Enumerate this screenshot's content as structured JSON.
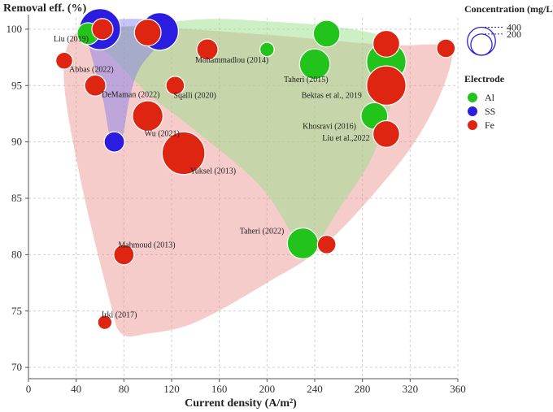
{
  "chart_data": {
    "type": "scatter",
    "xlabel": "Current density (A/m²)",
    "ylabel": "Removal eff. (%)",
    "xlim": [
      0,
      360
    ],
    "ylim": [
      69,
      101
    ],
    "xticks": [
      0,
      40,
      80,
      120,
      160,
      200,
      240,
      280,
      320,
      360
    ],
    "yticks": [
      70,
      75,
      80,
      85,
      90,
      95,
      100
    ],
    "grid": true,
    "colors": {
      "Al": "#22c31b",
      "SS": "#2b1de0",
      "Fe": "#dd2511"
    },
    "regions": [
      {
        "electrode": "Fe",
        "fill": "#e98f8a",
        "opacity": 0.45,
        "boundary": [
          [
            55,
            100
          ],
          [
            100,
            100.2
          ],
          [
            200,
            99.5
          ],
          [
            300,
            98.6
          ],
          [
            345,
            98.6
          ],
          [
            355,
            97.5
          ],
          [
            340,
            93
          ],
          [
            310,
            88
          ],
          [
            250,
            81
          ],
          [
            200,
            77.5
          ],
          [
            140,
            74
          ],
          [
            100,
            73
          ],
          [
            78,
            73
          ],
          [
            68,
            76
          ],
          [
            45,
            86
          ],
          [
            30,
            95
          ],
          [
            35,
            99
          ]
        ]
      },
      {
        "electrode": "Al",
        "fill": "#9adf8a",
        "opacity": 0.5,
        "boundary": [
          [
            55,
            99.9
          ],
          [
            100,
            100.4
          ],
          [
            150,
            100.9
          ],
          [
            200,
            100.7
          ],
          [
            250,
            100.3
          ],
          [
            290,
            99.6
          ],
          [
            308,
            98.5
          ],
          [
            310,
            96
          ],
          [
            300,
            92
          ],
          [
            285,
            88
          ],
          [
            260,
            84
          ],
          [
            240,
            80.7
          ],
          [
            228,
            80.7
          ],
          [
            195,
            86
          ],
          [
            140,
            91
          ],
          [
            100,
            94.3
          ],
          [
            70,
            97.5
          ],
          [
            52,
            99
          ]
        ]
      },
      {
        "electrode": "SS",
        "fill": "#7c78f0",
        "opacity": 0.45,
        "boundary": [
          [
            55,
            100.2
          ],
          [
            70,
            100.8
          ],
          [
            95,
            100.9
          ],
          [
            112,
            100.5
          ],
          [
            115,
            99.6
          ],
          [
            108,
            98.5
          ],
          [
            93,
            96.5
          ],
          [
            85,
            94
          ],
          [
            80,
            91
          ],
          [
            76,
            89.5
          ],
          [
            70,
            89.5
          ],
          [
            62,
            94
          ],
          [
            50,
            99
          ]
        ]
      }
    ],
    "series": [
      {
        "name": "Al",
        "points": [
          {
            "x": 240,
            "y": 96.9,
            "c": 240,
            "label": "Taheri (2015)"
          },
          {
            "x": 200,
            "y": 98.2,
            "c": 25,
            "label": ""
          },
          {
            "x": 250,
            "y": 99.6,
            "c": 170,
            "label": ""
          },
          {
            "x": 300,
            "y": 97.1,
            "c": 450,
            "label": ""
          },
          {
            "x": 290,
            "y": 92.3,
            "c": 170,
            "label": "Khosravi (2016)"
          },
          {
            "x": 230,
            "y": 81.0,
            "c": 250,
            "label": "Taheri (2022)"
          },
          {
            "x": 50,
            "y": 99.6,
            "c": 100,
            "label": ""
          }
        ]
      },
      {
        "name": "SS",
        "points": [
          {
            "x": 60,
            "y": 100,
            "c": 500,
            "label": ""
          },
          {
            "x": 110,
            "y": 99.8,
            "c": 400,
            "label": ""
          },
          {
            "x": 72,
            "y": 90.0,
            "c": 80,
            "label": ""
          }
        ]
      },
      {
        "name": "Fe",
        "points": [
          {
            "x": 62,
            "y": 100,
            "c": 90,
            "label": "Liu (2019)"
          },
          {
            "x": 100,
            "y": 99.7,
            "c": 170,
            "label": ""
          },
          {
            "x": 150,
            "y": 98.2,
            "c": 90,
            "label": "Mohammadlou (2014)"
          },
          {
            "x": 300,
            "y": 98.7,
            "c": 170,
            "label": ""
          },
          {
            "x": 350,
            "y": 98.3,
            "c": 60,
            "label": ""
          },
          {
            "x": 30,
            "y": 97.2,
            "c": 45,
            "label": "Abbas (2022)"
          },
          {
            "x": 56,
            "y": 95.0,
            "c": 90,
            "label": "DeMaman (2022)"
          },
          {
            "x": 123,
            "y": 95.0,
            "c": 60,
            "label": "Sqalli (2020)"
          },
          {
            "x": 300,
            "y": 95.0,
            "c": 450,
            "label": "Bektas et al., 2019"
          },
          {
            "x": 100,
            "y": 92.3,
            "c": 240,
            "label": "Wu (2021)"
          },
          {
            "x": 300,
            "y": 90.7,
            "c": 170,
            "label": "Liu et al.,2022"
          },
          {
            "x": 130,
            "y": 89.0,
            "c": 550,
            "label": "Yuksel (2013)"
          },
          {
            "x": 250,
            "y": 80.9,
            "c": 60,
            "label": ""
          },
          {
            "x": 80,
            "y": 80.0,
            "c": 80,
            "label": "Mahmoud (2013)"
          },
          {
            "x": 64,
            "y": 74.0,
            "c": 25,
            "label": "Irki (2017)"
          }
        ]
      }
    ],
    "legend": {
      "placement": "top-right",
      "concentration_title": "Concentration (mg/L)",
      "concentration_values": [
        400,
        200
      ],
      "electrode_title": "Electrode",
      "electrode_items": [
        "Al",
        "SS",
        "Fe"
      ]
    }
  }
}
